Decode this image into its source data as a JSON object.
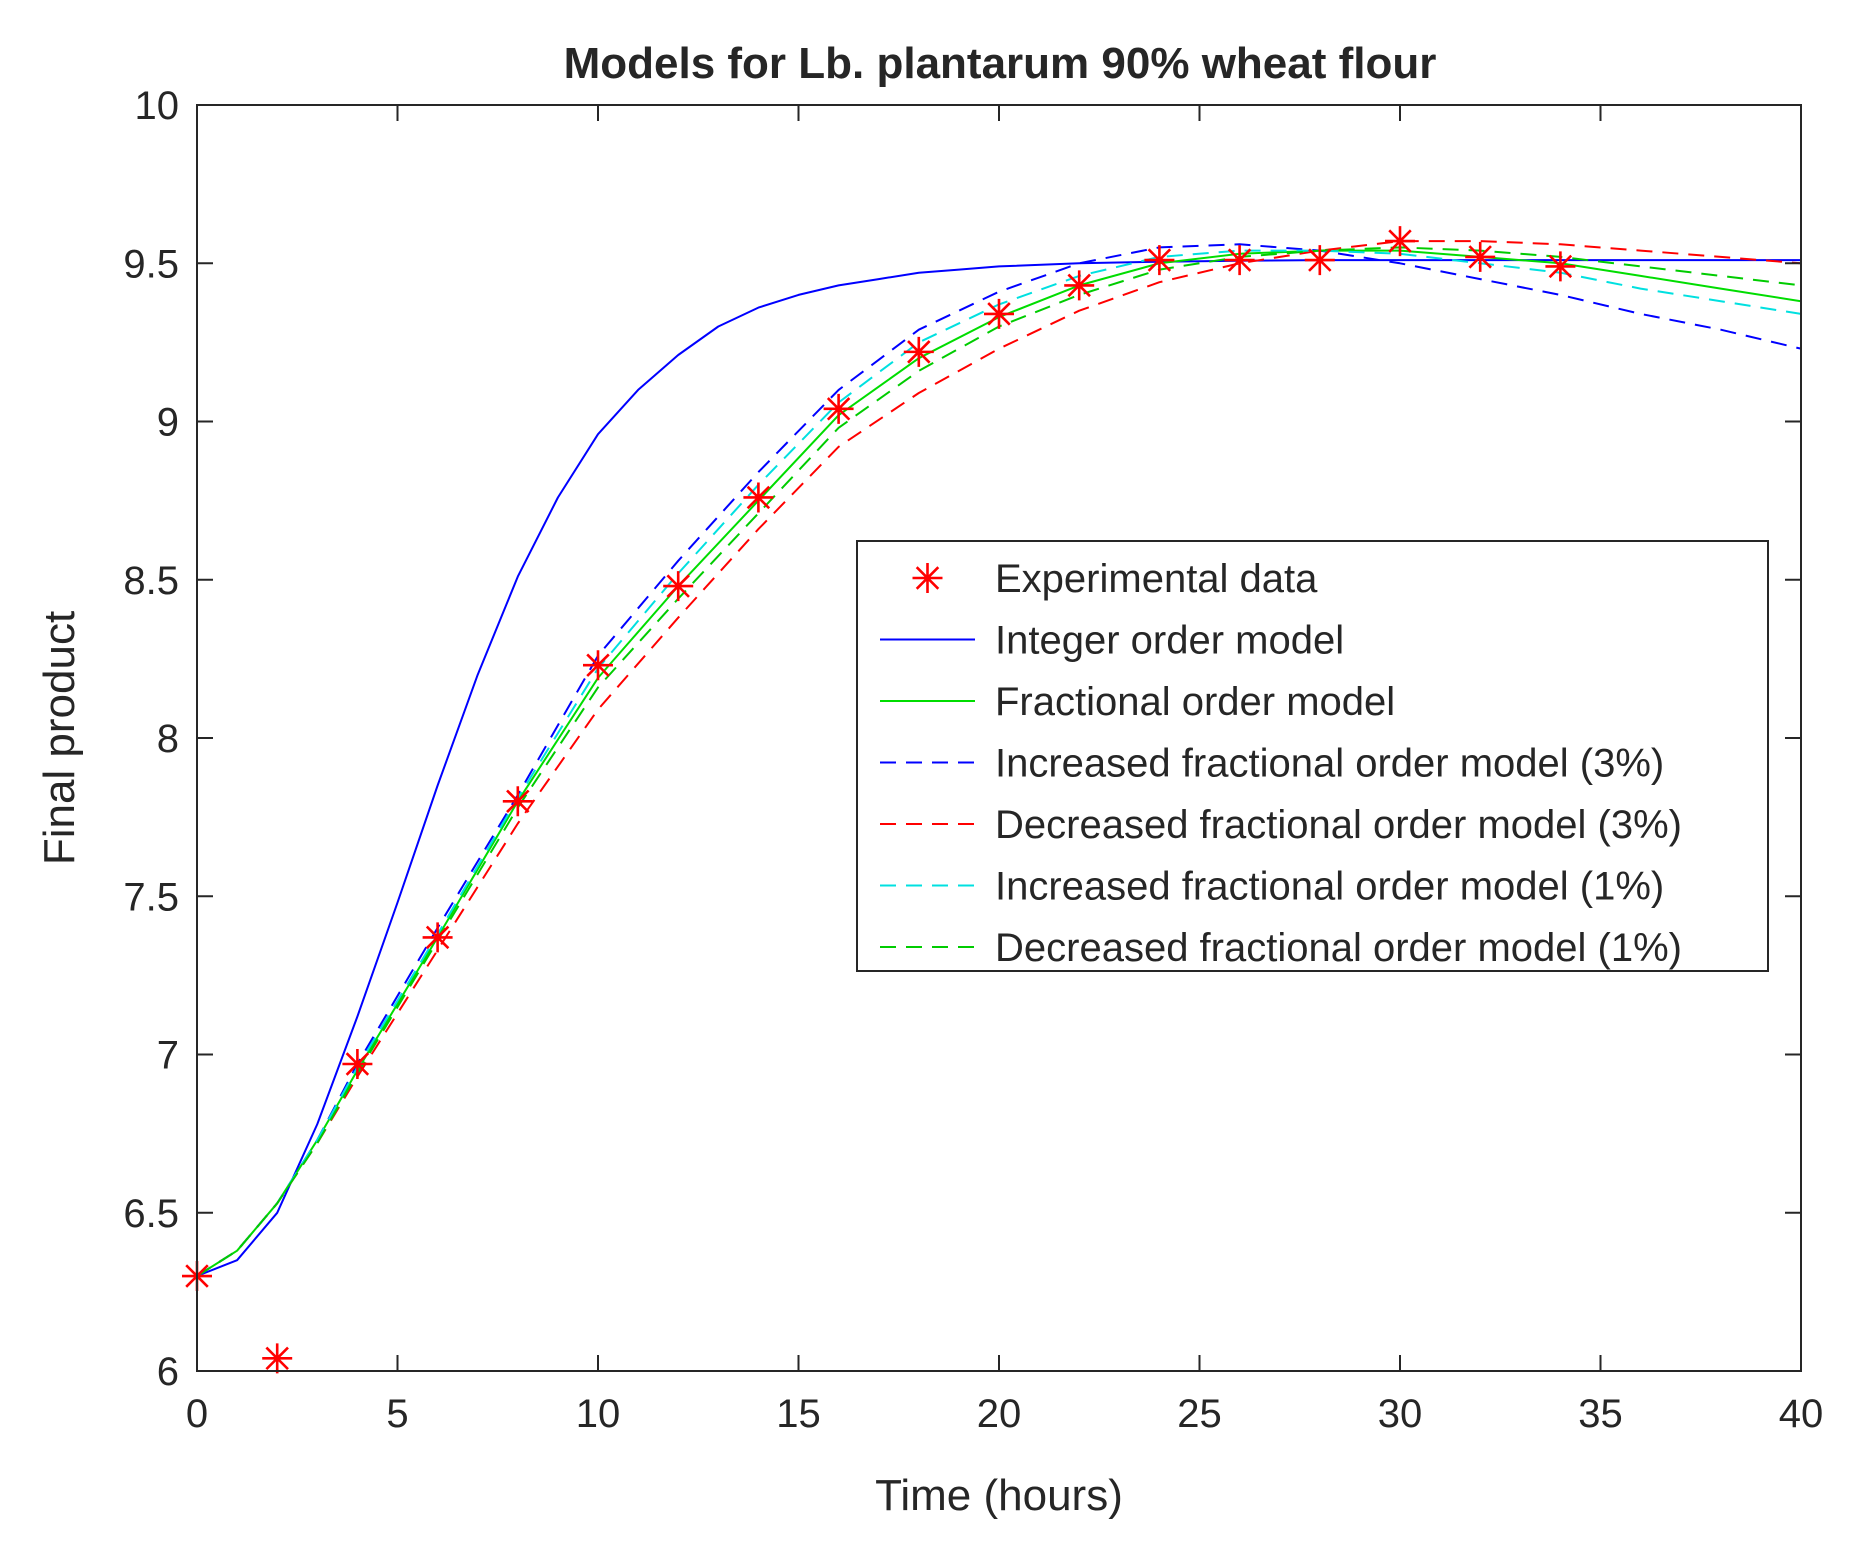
{
  "chart_data": {
    "type": "line",
    "title": "Models for Lb. plantarum 90% wheat flour",
    "xlabel": "Time (hours)",
    "ylabel": "Final product",
    "xlim": [
      0,
      40
    ],
    "ylim": [
      6,
      10
    ],
    "xticks": [
      0,
      5,
      10,
      15,
      20,
      25,
      30,
      35,
      40
    ],
    "yticks": [
      6,
      6.5,
      7,
      7.5,
      8,
      8.5,
      9,
      9.5,
      10
    ],
    "grid": false,
    "legend_position": "middle-right",
    "series": [
      {
        "name": "Experimental data",
        "style": "markers",
        "marker": "asterisk",
        "color": "#ff0000",
        "x": [
          0,
          2,
          4,
          6,
          8,
          10,
          12,
          14,
          16,
          18,
          20,
          22,
          24,
          26,
          28,
          30,
          32,
          34
        ],
        "y": [
          6.3,
          6.04,
          6.97,
          7.37,
          7.8,
          8.23,
          8.48,
          8.76,
          9.04,
          9.22,
          9.34,
          9.43,
          9.51,
          9.51,
          9.51,
          9.57,
          9.52,
          9.49
        ]
      },
      {
        "name": "Integer order model",
        "style": "solid",
        "color": "#0000ff",
        "x": [
          0,
          1,
          2,
          3,
          4,
          5,
          6,
          7,
          8,
          9,
          10,
          11,
          12,
          13,
          14,
          15,
          16,
          17,
          18,
          19,
          20,
          22,
          24,
          26,
          28,
          30,
          32,
          34,
          36,
          38,
          40
        ],
        "y": [
          6.3,
          6.35,
          6.5,
          6.78,
          7.12,
          7.48,
          7.85,
          8.2,
          8.51,
          8.76,
          8.96,
          9.1,
          9.21,
          9.3,
          9.36,
          9.4,
          9.43,
          9.45,
          9.47,
          9.48,
          9.49,
          9.5,
          9.505,
          9.508,
          9.51,
          9.51,
          9.51,
          9.51,
          9.51,
          9.51,
          9.51
        ]
      },
      {
        "name": "Fractional order model",
        "style": "solid",
        "color": "#00dd00",
        "x": [
          0,
          1,
          2,
          3,
          4,
          6,
          8,
          10,
          12,
          14,
          16,
          18,
          20,
          22,
          24,
          26,
          28,
          30,
          32,
          34,
          36,
          38,
          40
        ],
        "y": [
          6.3,
          6.38,
          6.53,
          6.73,
          6.95,
          7.37,
          7.8,
          8.19,
          8.48,
          8.75,
          9.02,
          9.2,
          9.33,
          9.43,
          9.5,
          9.53,
          9.54,
          9.54,
          9.52,
          9.5,
          9.46,
          9.42,
          9.38
        ]
      },
      {
        "name": "Increased fractional order model (3%)",
        "style": "dashed",
        "color": "#0000ff",
        "x": [
          0,
          1,
          2,
          3,
          4,
          6,
          8,
          10,
          12,
          14,
          16,
          18,
          20,
          22,
          24,
          26,
          28,
          30,
          32,
          34,
          36,
          38,
          40
        ],
        "y": [
          6.3,
          6.38,
          6.53,
          6.73,
          6.97,
          7.4,
          7.82,
          8.26,
          8.56,
          8.84,
          9.1,
          9.29,
          9.41,
          9.5,
          9.55,
          9.56,
          9.54,
          9.5,
          9.45,
          9.4,
          9.34,
          9.29,
          9.23
        ]
      },
      {
        "name": "Decreased fractional order model (3%)",
        "style": "dashed",
        "color": "#ff0000",
        "x": [
          0,
          1,
          2,
          3,
          4,
          6,
          8,
          10,
          12,
          14,
          16,
          18,
          20,
          22,
          24,
          26,
          28,
          30,
          32,
          34,
          36,
          38,
          40
        ],
        "y": [
          6.3,
          6.38,
          6.53,
          6.72,
          6.93,
          7.33,
          7.73,
          8.09,
          8.38,
          8.66,
          8.92,
          9.09,
          9.23,
          9.35,
          9.44,
          9.5,
          9.54,
          9.57,
          9.57,
          9.56,
          9.54,
          9.52,
          9.5
        ]
      },
      {
        "name": "Increased fractional order model (1%)",
        "style": "dashed",
        "color": "#00e0e0",
        "x": [
          0,
          1,
          2,
          3,
          4,
          6,
          8,
          10,
          12,
          14,
          16,
          18,
          20,
          22,
          24,
          26,
          28,
          30,
          32,
          34,
          36,
          38,
          40
        ],
        "y": [
          6.3,
          6.38,
          6.53,
          6.73,
          6.96,
          7.38,
          7.81,
          8.22,
          8.52,
          8.8,
          9.06,
          9.25,
          9.37,
          9.46,
          9.52,
          9.54,
          9.54,
          9.53,
          9.5,
          9.47,
          9.42,
          9.38,
          9.34
        ]
      },
      {
        "name": "Decreased fractional order model (1%)",
        "style": "dashed",
        "color": "#00cc00",
        "x": [
          0,
          1,
          2,
          3,
          4,
          6,
          8,
          10,
          12,
          14,
          16,
          18,
          20,
          22,
          24,
          26,
          28,
          30,
          32,
          34,
          36,
          38,
          40
        ],
        "y": [
          6.3,
          6.38,
          6.53,
          6.72,
          6.94,
          7.36,
          7.78,
          8.16,
          8.44,
          8.71,
          8.98,
          9.16,
          9.3,
          9.4,
          9.48,
          9.52,
          9.54,
          9.55,
          9.54,
          9.52,
          9.49,
          9.46,
          9.43
        ]
      }
    ]
  }
}
